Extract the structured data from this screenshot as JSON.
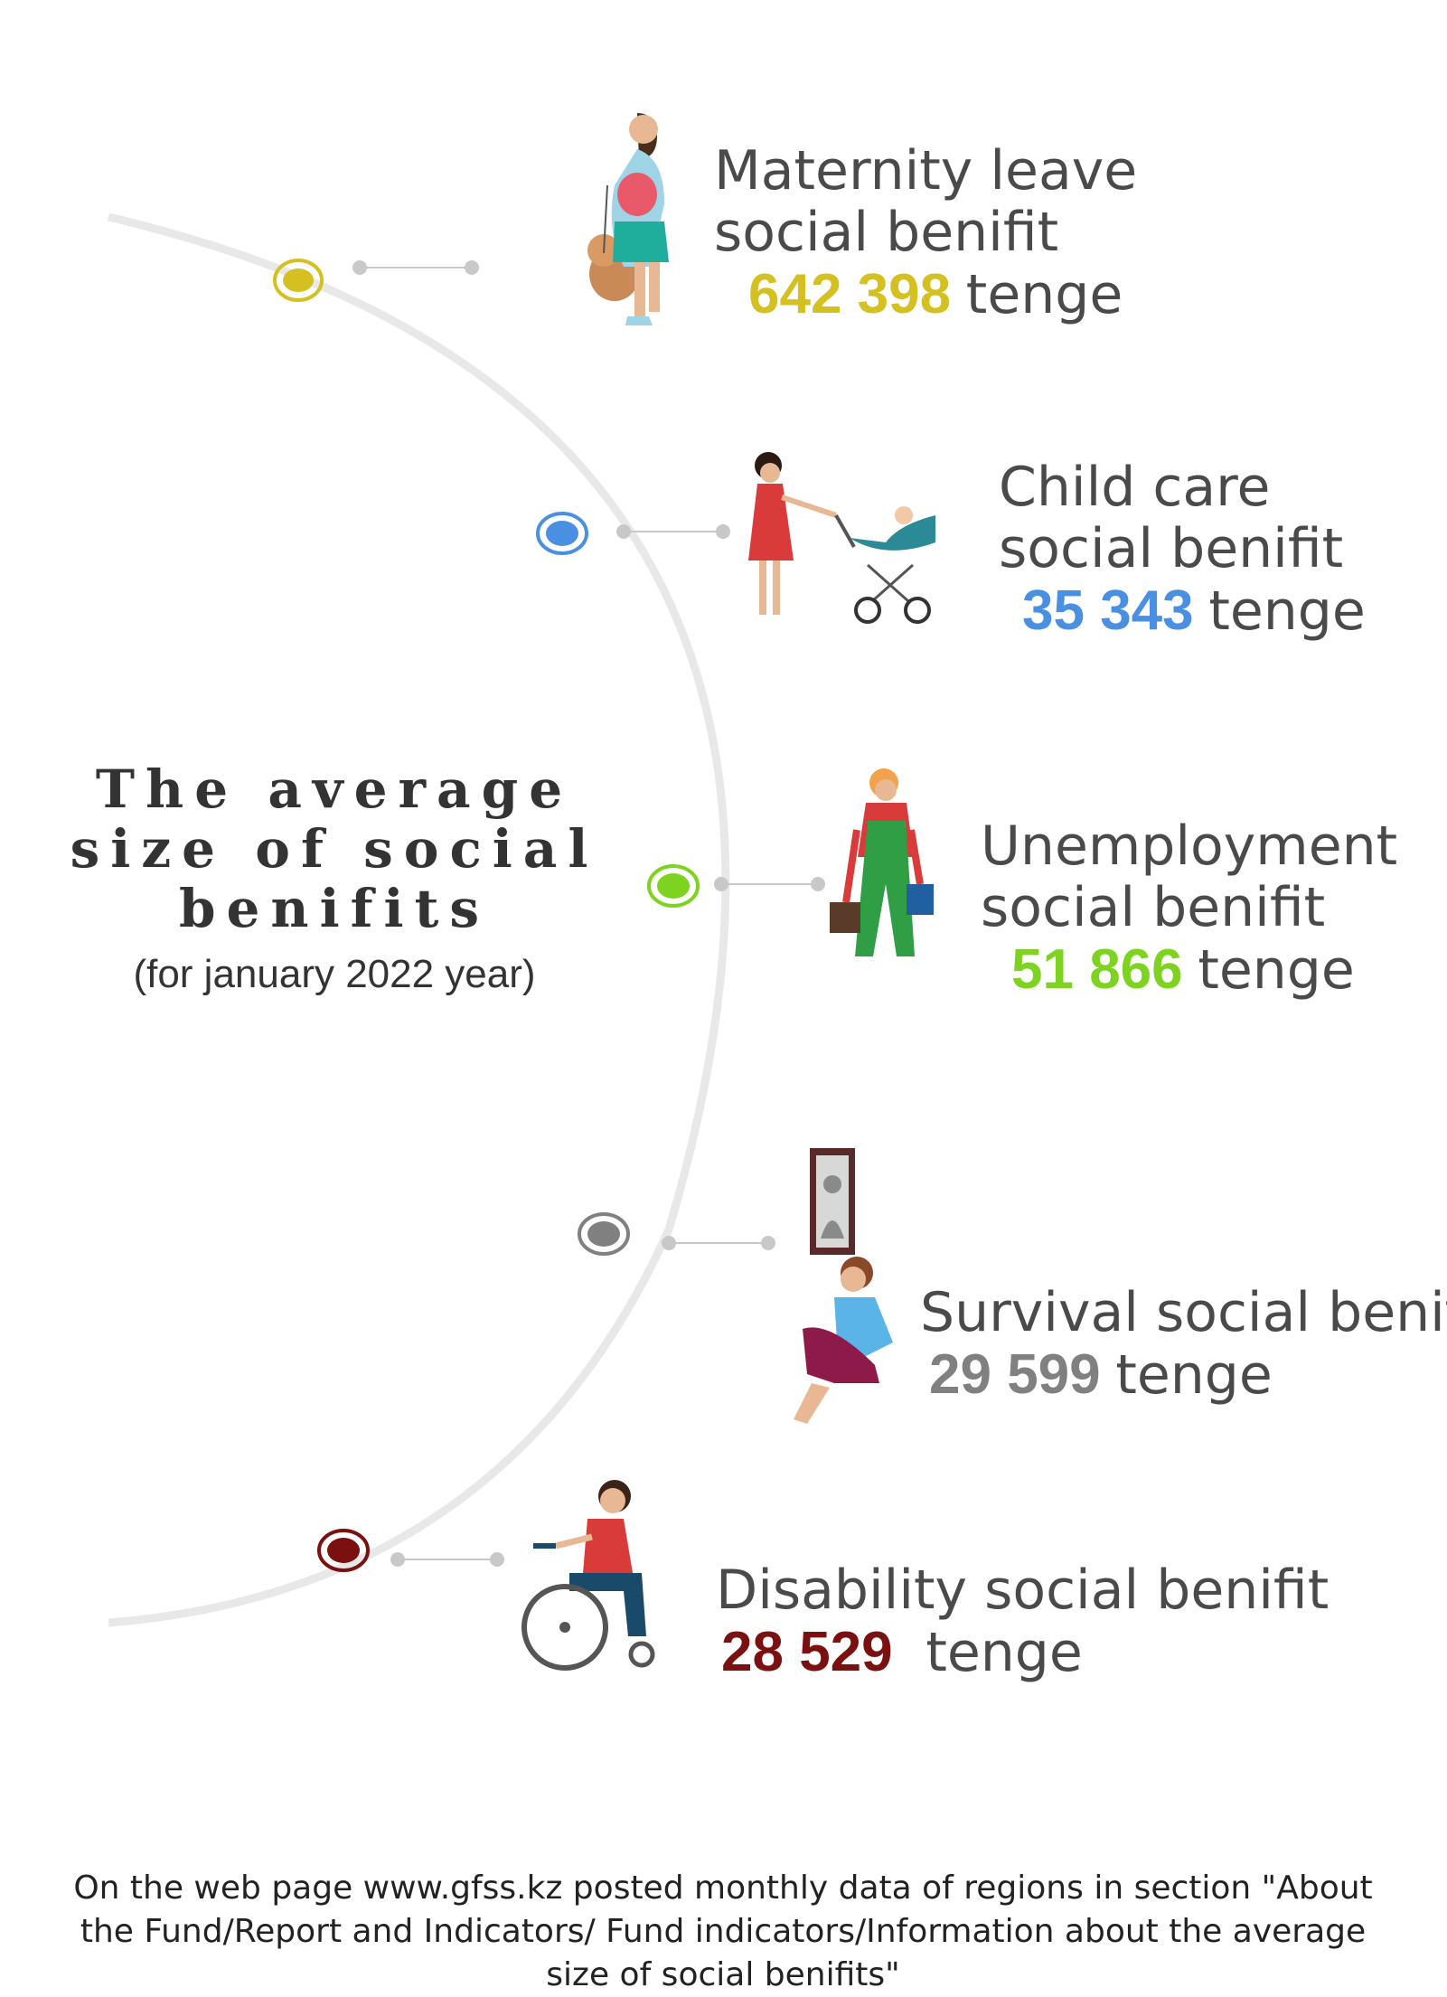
{
  "heading": {
    "lines": [
      "The average",
      "size of social",
      "benifits"
    ],
    "subtitle": "(for january 2022 year)"
  },
  "benefits": [
    {
      "label_lines": [
        "Maternity leave",
        "social benifit"
      ],
      "amount": "642 398",
      "unit": "tenge",
      "color": "#d4c020",
      "icon": "pregnant-woman-with-dog-icon"
    },
    {
      "label_lines": [
        "Child care",
        "social benifit"
      ],
      "amount": "35 343",
      "unit": "tenge",
      "color": "#4a90e2",
      "icon": "mother-with-stroller-icon"
    },
    {
      "label_lines": [
        "Unemployment",
        "social benifit"
      ],
      "amount": "51 866",
      "unit": "tenge",
      "color": "#7ed321",
      "icon": "worker-with-buckets-icon"
    },
    {
      "label_lines": [
        "Survival social benifit"
      ],
      "amount": "29 599",
      "unit": "tenge",
      "color": "#808080",
      "icon": "grieving-person-icon"
    },
    {
      "label_lines": [
        "Disability social benifit"
      ],
      "amount": "28 529",
      "unit": "tenge",
      "color": "#7a1010",
      "icon": "wheelchair-user-icon"
    }
  ],
  "footer": "On the web page www.gfss.kz posted monthly data of regions in section \"About the Fund/Report and Indicators/ Fund indicators/Information about the average size of social benifits\""
}
